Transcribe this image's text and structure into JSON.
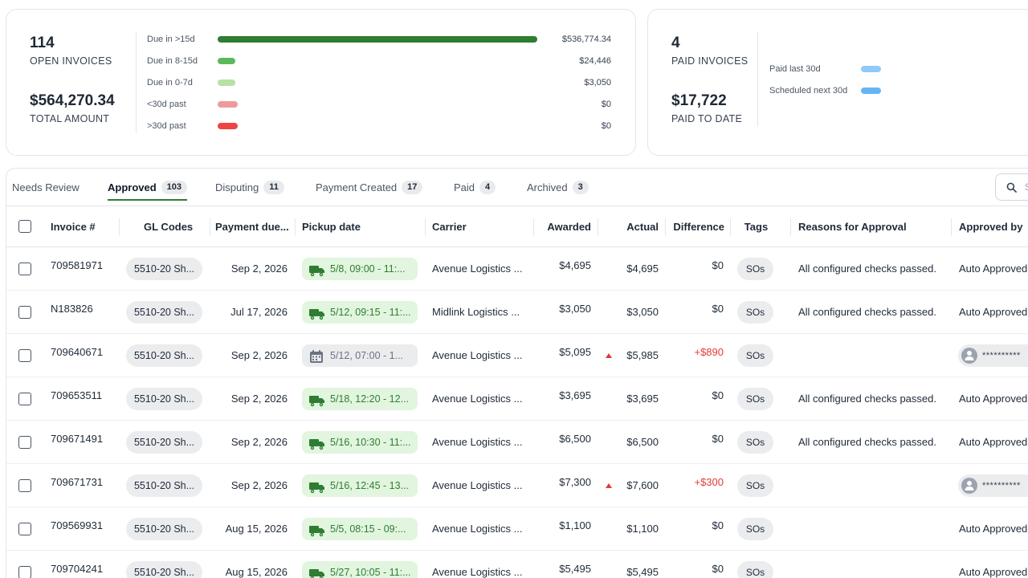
{
  "summary": {
    "open": {
      "count": "114",
      "count_label": "OPEN INVOICES",
      "amount": "$564,270.34",
      "amount_label": "TOTAL AMOUNT",
      "aging": [
        {
          "label": "Due in >15d",
          "value": "$536,774.34",
          "fraction": 1.0,
          "color": "#2e7d32"
        },
        {
          "label": "Due in 8-15d",
          "value": "$24,446",
          "fraction": 0.055,
          "color": "#5cb85c"
        },
        {
          "label": "Due in 0-7d",
          "value": "$3,050",
          "fraction": 0.055,
          "color": "#b9e0a5"
        },
        {
          "label": "<30d past",
          "value": "$0",
          "fraction": 0.062,
          "color": "#ef9a9a"
        },
        {
          "label": ">30d past",
          "value": "$0",
          "fraction": 0.062,
          "color": "#ef4444"
        }
      ]
    },
    "paid": {
      "count": "4",
      "count_label": "PAID INVOICES",
      "amount": "$17,722",
      "amount_label": "PAID TO DATE",
      "rows": [
        {
          "label": "Paid last 30d",
          "color": "#90caf9"
        },
        {
          "label": "Scheduled next 30d",
          "color": "#64b5f6"
        }
      ]
    }
  },
  "tabs": [
    {
      "label": "Needs Review",
      "count": ""
    },
    {
      "label": "Approved",
      "count": "103"
    },
    {
      "label": "Disputing",
      "count": "11"
    },
    {
      "label": "Payment Created",
      "count": "17"
    },
    {
      "label": "Paid",
      "count": "4"
    },
    {
      "label": "Archived",
      "count": "3"
    }
  ],
  "active_tab": "Approved",
  "search": {
    "placeholder": "S"
  },
  "columns": {
    "invoice": "Invoice #",
    "gl": "GL Codes",
    "due": "Payment due...",
    "pickup": "Pickup date",
    "carrier": "Carrier",
    "awarded": "Awarded",
    "actual": "Actual",
    "difference": "Difference",
    "tags": "Tags",
    "reasons": "Reasons for Approval",
    "approved_by": "Approved by"
  },
  "rows": [
    {
      "invoice": "709581971",
      "gl": "5510-20 Sh...",
      "due": "Sep 2, 2026",
      "pickup": "5/8, 09:00 - 11:...",
      "pickup_status": "ok",
      "carrier": "Avenue Logistics ...",
      "awarded": "$4,695",
      "actual": "$4,695",
      "over": false,
      "difference": "$0",
      "tag": "SOs",
      "reason": "All configured checks passed.",
      "approved_by": "Auto Approved",
      "approver_masked": ""
    },
    {
      "invoice": "N183826",
      "gl": "5510-20 Sh...",
      "due": "Jul 17, 2026",
      "pickup": "5/12, 09:15 - 11:...",
      "pickup_status": "ok",
      "carrier": "Midlink Logistics ...",
      "awarded": "$3,050",
      "actual": "$3,050",
      "over": false,
      "difference": "$0",
      "tag": "SOs",
      "reason": "All configured checks passed.",
      "approved_by": "Auto Approved",
      "approver_masked": ""
    },
    {
      "invoice": "709640671",
      "gl": "5510-20 Sh...",
      "due": "Sep 2, 2026",
      "pickup": "5/12, 07:00 - 1...",
      "pickup_status": "pending",
      "carrier": "Avenue Logistics ...",
      "awarded": "$5,095",
      "actual": "$5,985",
      "over": true,
      "difference": "+$890",
      "tag": "SOs",
      "reason": "",
      "approved_by": "",
      "approver_masked": "**********"
    },
    {
      "invoice": "709653511",
      "gl": "5510-20 Sh...",
      "due": "Sep 2, 2026",
      "pickup": "5/18, 12:20 - 12...",
      "pickup_status": "ok",
      "carrier": "Avenue Logistics ...",
      "awarded": "$3,695",
      "actual": "$3,695",
      "over": false,
      "difference": "$0",
      "tag": "SOs",
      "reason": "All configured checks passed.",
      "approved_by": "Auto Approved",
      "approver_masked": ""
    },
    {
      "invoice": "709671491",
      "gl": "5510-20 Sh...",
      "due": "Sep 2, 2026",
      "pickup": "5/16, 10:30 - 11:...",
      "pickup_status": "ok",
      "carrier": "Avenue Logistics ...",
      "awarded": "$6,500",
      "actual": "$6,500",
      "over": false,
      "difference": "$0",
      "tag": "SOs",
      "reason": "All configured checks passed.",
      "approved_by": "Auto Approved",
      "approver_masked": ""
    },
    {
      "invoice": "709671731",
      "gl": "5510-20 Sh...",
      "due": "Sep 2, 2026",
      "pickup": "5/16, 12:45 - 13...",
      "pickup_status": "ok",
      "carrier": "Avenue Logistics ...",
      "awarded": "$7,300",
      "actual": "$7,600",
      "over": true,
      "difference": "+$300",
      "tag": "SOs",
      "reason": "",
      "approved_by": "",
      "approver_masked": "**********"
    },
    {
      "invoice": "709569931",
      "gl": "5510-20 Sh...",
      "due": "Aug 15, 2026",
      "pickup": "5/5, 08:15 - 09:...",
      "pickup_status": "ok",
      "carrier": "Avenue Logistics ...",
      "awarded": "$1,100",
      "actual": "$1,100",
      "over": false,
      "difference": "$0",
      "tag": "SOs",
      "reason": "",
      "approved_by": "Auto Approved",
      "approver_masked": ""
    },
    {
      "invoice": "709704241",
      "gl": "5510-20 Sh...",
      "due": "Aug 15, 2026",
      "pickup": "5/27, 10:05 - 11:...",
      "pickup_status": "ok",
      "carrier": "Avenue Logistics ...",
      "awarded": "$5,495",
      "actual": "$5,495",
      "over": false,
      "difference": "$0",
      "tag": "SOs",
      "reason": "",
      "approved_by": "Auto Approved",
      "approver_masked": ""
    }
  ]
}
